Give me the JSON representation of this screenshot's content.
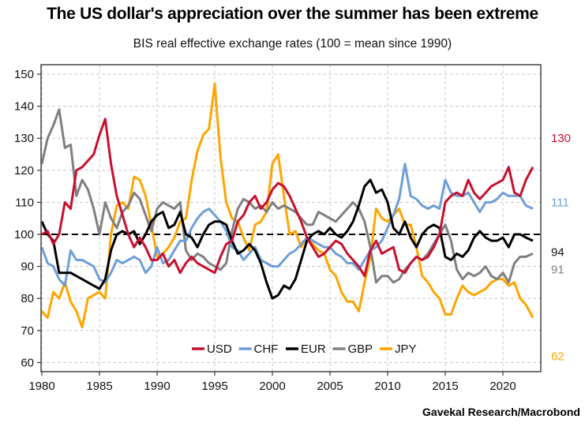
{
  "chart_data": {
    "type": "line",
    "title": "The US dollar's appreciation over the summer has been extreme",
    "subtitle": "BIS real effective exchange rates (100 = mean since 1990)",
    "source": "Gavekal Research/Macrobond",
    "xlabel": "",
    "ylabel": "",
    "xlim": [
      1980,
      2023
    ],
    "ylim": [
      58,
      152
    ],
    "x_ticks": [
      1980,
      1985,
      1990,
      1995,
      2000,
      2005,
      2010,
      2015,
      2020
    ],
    "x_tick_labels": [
      "1980",
      "1985",
      "1990",
      "1995",
      "2000",
      "2005",
      "2010",
      "2015",
      "2020"
    ],
    "y_ticks": [
      60,
      70,
      80,
      90,
      100,
      110,
      120,
      130,
      140,
      150
    ],
    "y_tick_labels": [
      "60",
      "70",
      "80",
      "90",
      "100",
      "110",
      "120",
      "130",
      "140",
      "150"
    ],
    "grid": true,
    "reference_line": {
      "value": 100,
      "style": "dashed",
      "color": "#000000"
    },
    "legend": {
      "placement": "bottom-center",
      "entries": [
        "USD",
        "CHF",
        "EUR",
        "GBP",
        "JPY"
      ]
    },
    "x": [
      1980,
      1980.5,
      1981,
      1981.5,
      1982,
      1982.5,
      1983,
      1983.5,
      1984,
      1984.5,
      1985,
      1985.5,
      1986,
      1986.5,
      1987,
      1987.5,
      1988,
      1988.5,
      1989,
      1989.5,
      1990,
      1990.5,
      1991,
      1991.5,
      1992,
      1992.5,
      1993,
      1993.5,
      1994,
      1994.5,
      1995,
      1995.5,
      1996,
      1996.5,
      1997,
      1997.5,
      1998,
      1998.5,
      1999,
      1999.5,
      2000,
      2000.5,
      2001,
      2001.5,
      2002,
      2002.5,
      2003,
      2003.5,
      2004,
      2004.5,
      2005,
      2005.5,
      2006,
      2006.5,
      2007,
      2007.5,
      2008,
      2008.5,
      2009,
      2009.5,
      2010,
      2010.5,
      2011,
      2011.5,
      2012,
      2012.5,
      2013,
      2013.5,
      2014,
      2014.5,
      2015,
      2015.5,
      2016,
      2016.5,
      2017,
      2017.5,
      2018,
      2018.5,
      2019,
      2019.5,
      2020,
      2020.5,
      2021,
      2021.5,
      2022,
      2022.6
    ],
    "series": [
      {
        "name": "USD",
        "color": "#c8102e",
        "end_label": "130",
        "values": [
          100,
          101,
          97,
          100,
          110,
          108,
          120,
          121,
          123,
          125,
          131,
          136,
          122,
          112,
          106,
          100,
          96,
          99,
          96,
          92,
          92,
          94,
          90,
          92,
          88,
          91,
          93,
          91,
          90,
          89,
          88,
          93,
          97,
          98,
          104,
          106,
          110,
          112,
          108,
          110,
          114,
          116,
          115,
          112,
          108,
          104,
          99,
          96,
          93,
          94,
          96,
          98,
          97,
          94,
          92,
          90,
          87,
          95,
          98,
          94,
          95,
          96,
          89,
          88,
          91,
          93,
          92,
          93,
          96,
          100,
          110,
          112,
          113,
          112,
          117,
          113,
          111,
          113,
          115,
          116,
          117,
          121,
          113,
          112,
          117,
          121,
          127,
          130
        ]
      },
      {
        "name": "CHF",
        "color": "#6f9fd8",
        "end_label": "111",
        "values": [
          96,
          91,
          90,
          86,
          84,
          95,
          92,
          92,
          91,
          90,
          86,
          85,
          88,
          92,
          91,
          92,
          93,
          92,
          88,
          90,
          96,
          91,
          92,
          95,
          98,
          98,
          102,
          105,
          107,
          108,
          106,
          104,
          101,
          96,
          95,
          92,
          94,
          96,
          92,
          91,
          90,
          90,
          92,
          94,
          95,
          97,
          99,
          98,
          97,
          96,
          96,
          94,
          93,
          91,
          91,
          89,
          92,
          95,
          96,
          98,
          102,
          106,
          111,
          122,
          112,
          111,
          109,
          108,
          109,
          108,
          117,
          113,
          112,
          112,
          113,
          110,
          107,
          110,
          110,
          111,
          113,
          112,
          112,
          112,
          109,
          108,
          109,
          110
        ]
      },
      {
        "name": "EUR",
        "color": "#000000",
        "end_label": "94",
        "values": [
          104,
          100,
          98,
          88,
          88,
          88,
          87,
          86,
          85,
          84,
          83,
          86,
          95,
          100,
          101,
          100,
          101,
          97,
          100,
          104,
          106,
          107,
          102,
          103,
          107,
          100,
          99,
          96,
          100,
          103,
          104,
          104,
          103,
          98,
          94,
          95,
          97,
          95,
          91,
          85,
          80,
          81,
          84,
          83,
          86,
          92,
          98,
          100,
          101,
          100,
          102,
          100,
          99,
          101,
          104,
          109,
          115,
          117,
          113,
          114,
          110,
          102,
          100,
          104,
          99,
          96,
          100,
          102,
          103,
          102,
          93,
          92,
          94,
          93,
          95,
          99,
          101,
          99,
          98,
          98,
          99,
          96,
          100,
          100,
          99,
          98,
          96,
          94
        ]
      },
      {
        "name": "GBP",
        "color": "#808080",
        "end_label": "91",
        "values": [
          122,
          130,
          134,
          139,
          127,
          128,
          112,
          117,
          114,
          108,
          100,
          110,
          105,
          102,
          107,
          109,
          113,
          111,
          106,
          101,
          108,
          110,
          109,
          108,
          110,
          95,
          92,
          94,
          93,
          91,
          90,
          89,
          91,
          101,
          108,
          111,
          110,
          108,
          109,
          107,
          110,
          108,
          109,
          108,
          107,
          105,
          103,
          103,
          107,
          106,
          105,
          104,
          106,
          108,
          110,
          108,
          104,
          96,
          85,
          87,
          87,
          85,
          86,
          89,
          91,
          93,
          92,
          94,
          97,
          100,
          103,
          98,
          89,
          86,
          88,
          87,
          88,
          90,
          87,
          86,
          88,
          85,
          91,
          93,
          93,
          94,
          94,
          91
        ]
      },
      {
        "name": "JPY",
        "color": "#ffa500",
        "end_label": "62",
        "values": [
          76,
          74,
          82,
          80,
          85,
          79,
          76,
          71,
          80,
          81,
          82,
          80,
          100,
          109,
          110,
          108,
          118,
          117,
          112,
          103,
          93,
          94,
          96,
          99,
          104,
          105,
          117,
          126,
          131,
          133,
          147,
          124,
          110,
          105,
          104,
          99,
          95,
          103,
          104,
          107,
          122,
          125,
          112,
          100,
          101,
          96,
          99,
          97,
          95,
          94,
          89,
          87,
          82,
          79,
          79,
          76,
          85,
          93,
          108,
          105,
          104,
          106,
          108,
          103,
          103,
          96,
          87,
          85,
          82,
          80,
          75,
          75,
          80,
          84,
          82,
          81,
          82,
          83,
          85,
          86,
          86,
          84,
          85,
          80,
          78,
          74,
          69,
          62
        ]
      }
    ]
  }
}
